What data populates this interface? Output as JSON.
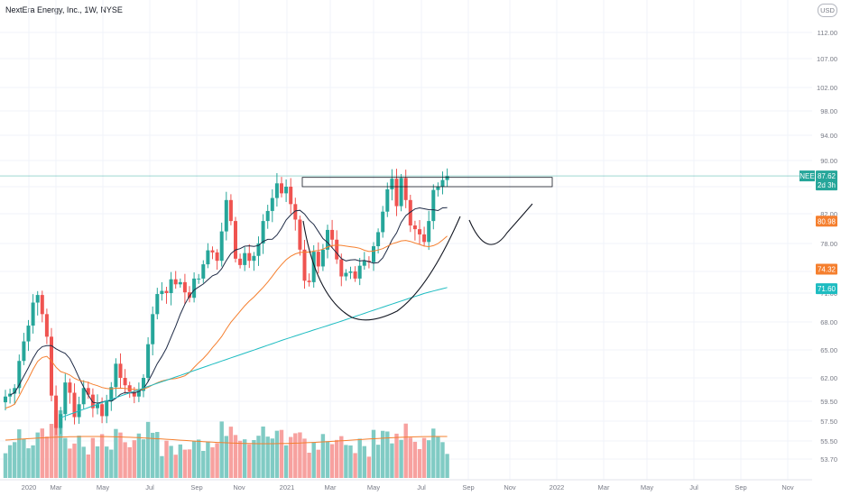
{
  "header": {
    "title": "NextEra Energy, Inc., 1W, NYSE",
    "currency": "USD"
  },
  "price_tags": {
    "symbol": "NEE",
    "last": "87.62",
    "countdown": "2d 3h",
    "ema_short": "80.98",
    "ema_mid": "74.32",
    "ema_long": "71.60"
  },
  "colors": {
    "up": "#26a69a",
    "down": "#ef5350",
    "vol_up": "#80cbc4",
    "vol_down": "#f7a19f",
    "ma_fast": "#1e2a45",
    "ema_mid": "#f57f2e",
    "ema_long": "#1ebcc1",
    "pattern": "#131722",
    "grid": "#f0f3fa"
  },
  "chart_data": {
    "type": "candlestick",
    "symbol": "NEE",
    "interval": "1W",
    "y_ticks": [
      "112.00",
      "107.00",
      "102.00",
      "98.00",
      "94.00",
      "90.00",
      "86.00",
      "82.00",
      "78.00",
      "74.00",
      "71.00",
      "68.00",
      "65.00",
      "62.00",
      "59.50",
      "57.50",
      "55.50",
      "53.70"
    ],
    "x_ticks": [
      "2020",
      "Mar",
      "May",
      "Jul",
      "Sep",
      "Nov",
      "2021",
      "Mar",
      "May",
      "Jul",
      "Sep",
      "Nov",
      "2022",
      "Mar",
      "May",
      "Jul",
      "Sep",
      "Nov"
    ],
    "closes": [
      60.0,
      60.3,
      60.9,
      63.8,
      65.9,
      67.6,
      70.0,
      70.8,
      68.8,
      66.4,
      60.1,
      56.8,
      58.2,
      61.5,
      60.4,
      57.9,
      59.2,
      60.9,
      60.2,
      58.8,
      59.2,
      58.0,
      59.5,
      61.0,
      63.5,
      62.0,
      61.2,
      60.5,
      60.0,
      60.6,
      62.0,
      65.6,
      68.8,
      70.9,
      71.3,
      71.0,
      72.9,
      72.2,
      72.5,
      71.1,
      70.5,
      73.0,
      73.0,
      75.0,
      77.0,
      76.7,
      75.5,
      79.6,
      84.0,
      81.0,
      75.8,
      74.9,
      76.6,
      75.5,
      76.2,
      78.0,
      81.0,
      82.4,
      84.3,
      86.5,
      85.0,
      86.0,
      83.4,
      81.2,
      77.1,
      72.7,
      72.5,
      76.8,
      74.7,
      77.1,
      79.8,
      78.5,
      75.7,
      73.3,
      73.8,
      74.0,
      73.0,
      74.8,
      75.5,
      75.3,
      77.6,
      79.5,
      82.3,
      85.6,
      87.2,
      83.1,
      87.3,
      84.0,
      80.4,
      79.9,
      79.2,
      78.2,
      81.0,
      85.5,
      86.0,
      87.0,
      87.6
    ],
    "annotations": {
      "resistance_box": {
        "x_from_candle": 61,
        "x_to_candle": 111,
        "low": 86.0,
        "high": 87.4
      },
      "last_price_line": 87.62,
      "cup_and_handle": true
    }
  }
}
